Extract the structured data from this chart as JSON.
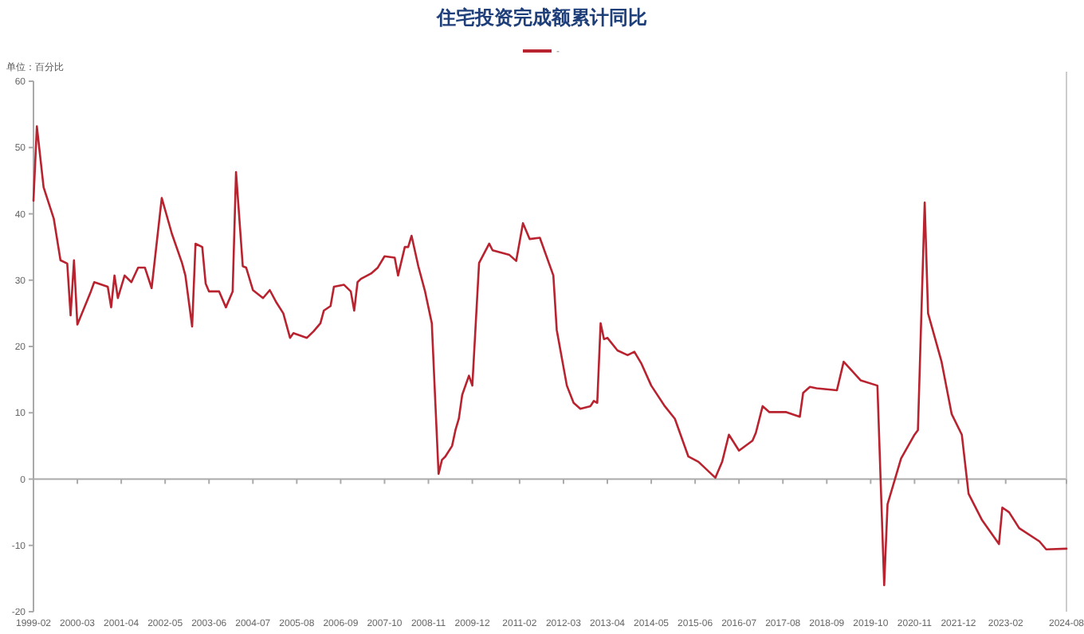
{
  "chart_data": {
    "type": "line",
    "title": "住宅投资完成额累计同比",
    "annotations": [
      "单位：百分比"
    ],
    "x": [
      "1999-02",
      "1999-03",
      "1999-05",
      "1999-08",
      "1999-10",
      "1999-12",
      "2000-01",
      "2000-02",
      "2000-03",
      "2000-07",
      "2000-08",
      "2000-12",
      "2001-01",
      "2001-02",
      "2001-03",
      "2001-05",
      "2001-07",
      "2001-09",
      "2001-11",
      "2002-01",
      "2002-04",
      "2002-07",
      "2002-10",
      "2002-11",
      "2003-01",
      "2003-02",
      "2003-04",
      "2003-05",
      "2003-06",
      "2003-09",
      "2003-11",
      "2004-01",
      "2004-02",
      "2004-04",
      "2004-05",
      "2004-07",
      "2004-10",
      "2004-12",
      "2005-02",
      "2005-04",
      "2005-06",
      "2005-07",
      "2005-11",
      "2006-01",
      "2006-03",
      "2006-04",
      "2006-06",
      "2006-07",
      "2006-10",
      "2006-12",
      "2007-01",
      "2007-02",
      "2007-03",
      "2007-06",
      "2007-08",
      "2007-10",
      "2008-01",
      "2008-02",
      "2008-04",
      "2008-05",
      "2008-06",
      "2008-08",
      "2008-10",
      "2008-12",
      "2009-01",
      "2009-02",
      "2009-03",
      "2009-04",
      "2009-06",
      "2009-07",
      "2009-08",
      "2009-09",
      "2009-11",
      "2009-12",
      "2010-02",
      "2010-05",
      "2010-06",
      "2010-11",
      "2011-01",
      "2011-03",
      "2011-05",
      "2011-08",
      "2011-12",
      "2012-01",
      "2012-04",
      "2012-06",
      "2012-08",
      "2012-11",
      "2012-12",
      "2013-01",
      "2013-02",
      "2013-03",
      "2013-04",
      "2013-07",
      "2013-10",
      "2013-12",
      "2014-02",
      "2014-05",
      "2014-09",
      "2014-12",
      "2015-04",
      "2015-07",
      "2015-12",
      "2016-02",
      "2016-04",
      "2016-07",
      "2016-11",
      "2016-12",
      "2017-02",
      "2017-04",
      "2017-09",
      "2018-01",
      "2018-02",
      "2018-04",
      "2018-06",
      "2018-12",
      "2019-02",
      "2019-07",
      "2019-12",
      "2020-02",
      "2020-03",
      "2020-07",
      "2020-11",
      "2020-12",
      "2021-02",
      "2021-03",
      "2021-07",
      "2021-10",
      "2022-01",
      "2022-03",
      "2022-07",
      "2022-12",
      "2023-01",
      "2023-03",
      "2023-06",
      "2023-12",
      "2024-02",
      "2024-08"
    ],
    "series": [
      {
        "name": "-",
        "color": "#b8232f",
        "values": [
          42,
          53.2,
          44,
          39.3,
          33,
          32.5,
          24.7,
          33,
          23.3,
          28.3,
          29.7,
          29,
          25.9,
          30.7,
          27.3,
          30.7,
          29.7,
          31.9,
          31.9,
          28.8,
          42.4,
          37,
          32.6,
          30.7,
          23,
          35.5,
          35,
          29.5,
          28.3,
          28.3,
          25.9,
          28.3,
          46.3,
          32.1,
          31.9,
          28.5,
          27.3,
          28.5,
          26.6,
          25,
          21.3,
          22,
          21.3,
          22.3,
          23.5,
          25.4,
          26.1,
          29,
          29.3,
          28.3,
          25.4,
          29.7,
          30.2,
          31,
          31.9,
          33.6,
          33.4,
          30.7,
          35,
          35,
          36.7,
          32.1,
          28.3,
          23.5,
          12,
          0.8,
          2.9,
          3.4,
          5,
          7.4,
          9.1,
          12.7,
          15.6,
          14.1,
          32.6,
          35.5,
          34.5,
          33.8,
          32.9,
          38.6,
          36.2,
          36.4,
          30.7,
          22.5,
          14.1,
          11.5,
          10.6,
          11,
          11.8,
          11.5,
          23.5,
          21.1,
          21.3,
          19.4,
          18.7,
          19.2,
          17.5,
          14.1,
          11,
          9.1,
          3.4,
          2.6,
          0.2,
          2.6,
          6.7,
          4.3,
          5.8,
          7,
          11,
          10.1,
          10.1,
          9.4,
          13,
          13.9,
          13.7,
          13.4,
          17.7,
          14.9,
          14.1,
          -16,
          -3.8,
          3.1,
          6.7,
          7.4,
          41.7,
          25,
          17.7,
          9.8,
          6.7,
          -2.2,
          -6.2,
          -9.8,
          -4.3,
          -5,
          -7.4,
          -9.4,
          -10.6,
          -10.5
        ]
      }
    ],
    "xlim": [
      "1999-02",
      "2024-08"
    ],
    "xticks": [
      "1999-02",
      "2000-03",
      "2001-04",
      "2002-05",
      "2003-06",
      "2004-07",
      "2005-08",
      "2006-09",
      "2007-10",
      "2008-11",
      "2009-12",
      "2011-02",
      "2012-03",
      "2013-04",
      "2014-05",
      "2015-06",
      "2016-07",
      "2017-08",
      "2018-09",
      "2019-10",
      "2020-11",
      "2021-12",
      "2023-02",
      "2024-08"
    ],
    "ylim": [
      -20,
      60
    ],
    "yticks": [
      -20,
      -10,
      0,
      10,
      20,
      30,
      40,
      50,
      60
    ],
    "legend": "top",
    "marker": "none",
    "line_style": "solid"
  }
}
